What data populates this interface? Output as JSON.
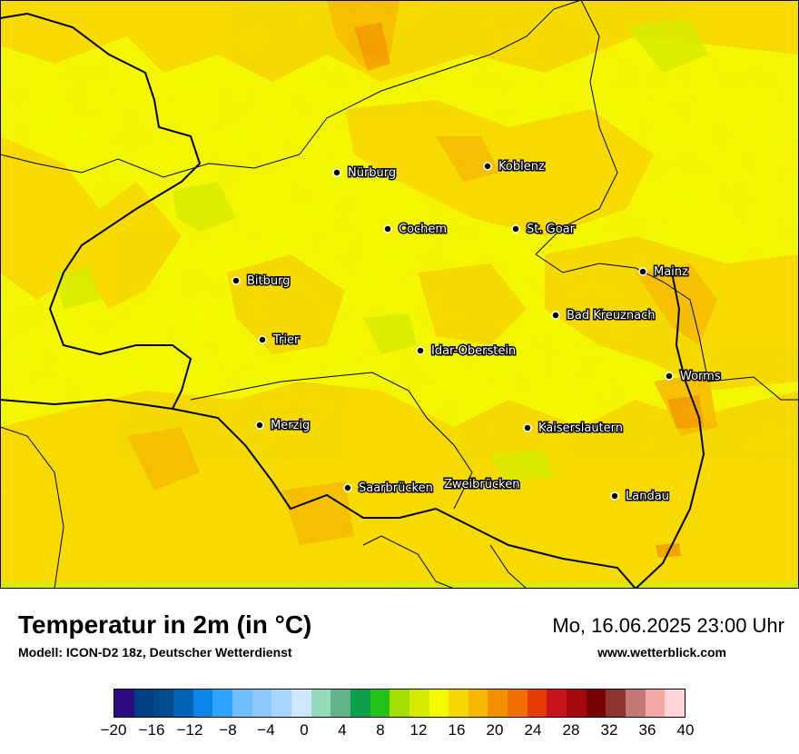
{
  "map": {
    "cities": [
      {
        "name": "Nürburg"
      },
      {
        "name": "Koblenz"
      },
      {
        "name": "Cochem"
      },
      {
        "name": "St. Goar"
      },
      {
        "name": "Bitburg"
      },
      {
        "name": "Mainz"
      },
      {
        "name": "Bad Kreuznach"
      },
      {
        "name": "Trier"
      },
      {
        "name": "Idar-Oberstein"
      },
      {
        "name": "Worms"
      },
      {
        "name": "Merzig"
      },
      {
        "name": "Kaiserslautern"
      },
      {
        "name": "Saarbrücken"
      },
      {
        "name": "Zweibrücken"
      },
      {
        "name": "Landau"
      }
    ]
  },
  "footer": {
    "title": "Temperatur in 2m (in °C)",
    "subtitle": "Modell: ICON-D2 18z, Deutscher Wetterdienst",
    "datetime": "Mo, 16.06.2025 23:00 Uhr",
    "website": "www.wetterblick.com"
  },
  "legend": {
    "ticks": [
      "−20",
      "−16",
      "−12",
      "−8",
      "−4",
      "0",
      "4",
      "8",
      "12",
      "16",
      "20",
      "24",
      "28",
      "32",
      "36",
      "40"
    ],
    "colors": [
      "#2b0a7d",
      "#003d82",
      "#014a8c",
      "#0063b8",
      "#0a84e6",
      "#2ea3ff",
      "#6fbcff",
      "#8ac8ff",
      "#a8d5ff",
      "#cfe6ff",
      "#93dbbc",
      "#62b38b",
      "#0ba04a",
      "#22c21a",
      "#a4de00",
      "#d4ec00",
      "#f2fa00",
      "#f5d800",
      "#f5b800",
      "#f29000",
      "#f16d00",
      "#e63a07",
      "#c8141a",
      "#a10b10",
      "#7a0202",
      "#8e3332",
      "#c47876",
      "#f2a8a5",
      "#ffd3d8"
    ]
  }
}
